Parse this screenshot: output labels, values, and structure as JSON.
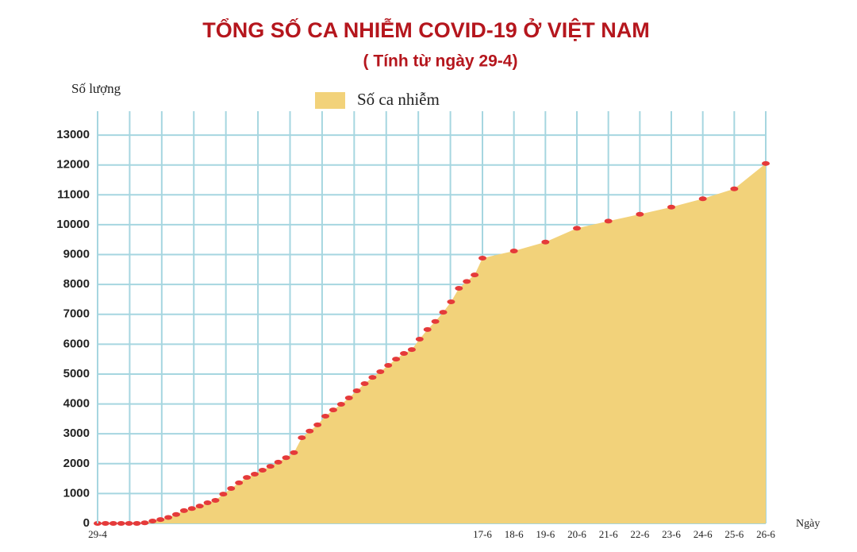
{
  "chart_data": {
    "type": "area",
    "title": "TỔNG SỐ CA NHIỄM COVID-19 Ở VIỆT NAM",
    "subtitle": "( Tính từ ngày 29-4)",
    "y_label": "Số lượng",
    "x_label": "Ngày",
    "categories": [
      "29-4",
      null,
      null,
      null,
      null,
      null,
      null,
      null,
      null,
      null,
      null,
      null,
      null,
      null,
      null,
      null,
      null,
      null,
      null,
      null,
      null,
      null,
      null,
      null,
      null,
      null,
      null,
      null,
      null,
      null,
      null,
      null,
      null,
      null,
      null,
      null,
      null,
      null,
      null,
      null,
      null,
      null,
      null,
      null,
      null,
      null,
      null,
      null,
      null,
      "17-6",
      "18-6",
      "19-6",
      "20-6",
      "21-6",
      "22-6",
      "23-6",
      "24-6",
      "25-6",
      "26-6"
    ],
    "series": [
      {
        "name": "Số ca nhiễm",
        "color": "#f2d27a",
        "marker_color": "#e53a3a",
        "values": [
          0,
          0,
          0,
          0,
          0,
          0,
          20,
          80,
          130,
          200,
          300,
          430,
          500,
          580,
          690,
          770,
          980,
          1170,
          1360,
          1540,
          1650,
          1780,
          1910,
          2050,
          2200,
          2370,
          2870,
          3090,
          3300,
          3590,
          3800,
          3990,
          4200,
          4440,
          4680,
          4890,
          5080,
          5290,
          5500,
          5690,
          5820,
          6170,
          6490,
          6760,
          7070,
          7420,
          7870,
          8100,
          8320,
          8880,
          9120,
          9420,
          9880,
          10120,
          10350,
          10590,
          10870,
          11200,
          12050
        ]
      }
    ],
    "ylim": [
      0,
      13800
    ],
    "yticks": [
      0,
      1000,
      2000,
      3000,
      4000,
      5000,
      6000,
      7000,
      8000,
      9000,
      10000,
      11000,
      12000,
      13000
    ],
    "grid": true,
    "legend": "top"
  }
}
